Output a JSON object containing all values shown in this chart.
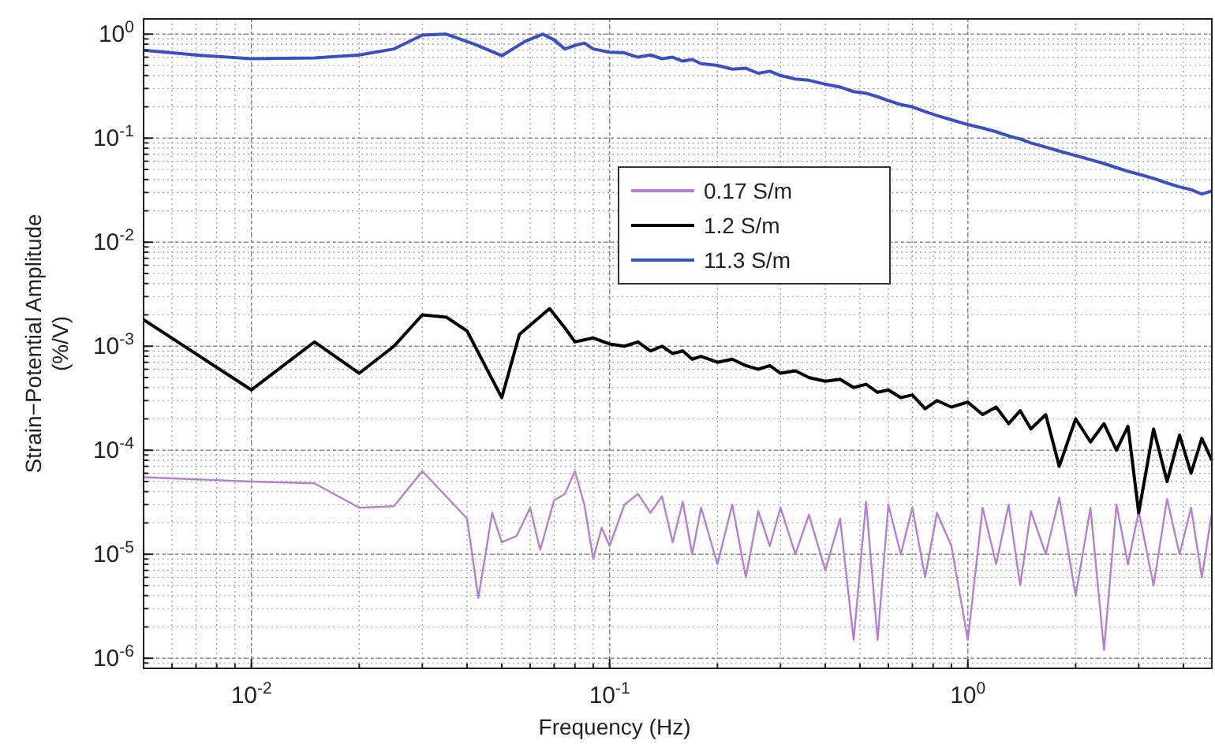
{
  "chart_data": {
    "type": "line",
    "xlabel": "Frequency (Hz)",
    "ylabel": "Strain−Potential Amplitude\n(%/V)",
    "log": "xy",
    "grid": true,
    "legend": "right",
    "xlim": [
      0.005,
      4.8
    ],
    "ylim": [
      8e-07,
      1.4
    ],
    "xticks": [
      {
        "value": 0.01,
        "label": "10$^{-2}$"
      },
      {
        "value": 0.1,
        "label": "10$^{-1}$"
      },
      {
        "value": 1,
        "label": "10$^{0}$"
      }
    ],
    "yticks": [
      {
        "value": 1e-06,
        "label": "10$^{-6}$"
      },
      {
        "value": 1e-05,
        "label": "10$^{-5}$"
      },
      {
        "value": 0.0001,
        "label": "10$^{-4}$"
      },
      {
        "value": 0.001,
        "label": "10$^{-3}$"
      },
      {
        "value": 0.01,
        "label": "10$^{-2}$"
      },
      {
        "value": 0.1,
        "label": "10$^{-1}$"
      },
      {
        "value": 1,
        "label": "10$^{0}$"
      }
    ],
    "series": [
      {
        "name": "0.17 S/m",
        "color": "#b77fcf",
        "x": [
          0.005,
          0.01,
          0.015,
          0.02,
          0.025,
          0.03,
          0.04,
          0.043,
          0.047,
          0.05,
          0.055,
          0.06,
          0.064,
          0.07,
          0.075,
          0.08,
          0.085,
          0.09,
          0.095,
          0.1,
          0.11,
          0.12,
          0.13,
          0.14,
          0.15,
          0.16,
          0.17,
          0.18,
          0.2,
          0.22,
          0.24,
          0.26,
          0.28,
          0.3,
          0.33,
          0.36,
          0.4,
          0.44,
          0.48,
          0.52,
          0.56,
          0.6,
          0.65,
          0.7,
          0.76,
          0.82,
          0.9,
          1.0,
          1.1,
          1.2,
          1.3,
          1.4,
          1.5,
          1.65,
          1.8,
          2.0,
          2.2,
          2.4,
          2.6,
          2.8,
          3.0,
          3.3,
          3.6,
          3.9,
          4.2,
          4.5,
          4.8
        ],
        "values": [
          5.5e-05,
          5e-05,
          4.8e-05,
          2.8e-05,
          2.9e-05,
          6.3e-05,
          2.2e-05,
          3.8e-06,
          2.5e-05,
          1.3e-05,
          1.5e-05,
          2.8e-05,
          1.1e-05,
          3.3e-05,
          3.8e-05,
          6.3e-05,
          3e-05,
          9e-06,
          1.8e-05,
          1.2e-05,
          3e-05,
          3.8e-05,
          2.5e-05,
          3.6e-05,
          1.3e-05,
          3.2e-05,
          1e-05,
          2.8e-05,
          8e-06,
          3e-05,
          6e-06,
          2.6e-05,
          1.2e-05,
          2.8e-05,
          1e-05,
          2.4e-05,
          7e-06,
          2.2e-05,
          1.5e-06,
          3.2e-05,
          1.5e-06,
          3e-05,
          1e-05,
          2.8e-05,
          6e-06,
          2.5e-05,
          1.2e-05,
          1.5e-06,
          2.8e-05,
          8e-06,
          3e-05,
          5e-06,
          2.6e-05,
          1e-05,
          3.5e-05,
          4e-06,
          2.8e-05,
          1.2e-06,
          3e-05,
          8e-06,
          2.6e-05,
          5e-06,
          3.4e-05,
          1e-05,
          2.8e-05,
          6e-06,
          2.5e-05
        ]
      },
      {
        "name": "1.2 S/m",
        "color": "#000000",
        "x": [
          0.005,
          0.01,
          0.015,
          0.02,
          0.025,
          0.03,
          0.035,
          0.04,
          0.05,
          0.056,
          0.068,
          0.075,
          0.08,
          0.09,
          0.1,
          0.11,
          0.12,
          0.13,
          0.14,
          0.15,
          0.16,
          0.17,
          0.18,
          0.2,
          0.22,
          0.24,
          0.26,
          0.28,
          0.3,
          0.33,
          0.36,
          0.4,
          0.44,
          0.48,
          0.52,
          0.56,
          0.6,
          0.65,
          0.7,
          0.76,
          0.82,
          0.9,
          1.0,
          1.1,
          1.2,
          1.3,
          1.4,
          1.5,
          1.65,
          1.8,
          2.0,
          2.2,
          2.4,
          2.6,
          2.8,
          3.0,
          3.3,
          3.6,
          3.9,
          4.2,
          4.5,
          4.8
        ],
        "values": [
          0.0018,
          0.00038,
          0.0011,
          0.00055,
          0.001,
          0.002,
          0.0019,
          0.0014,
          0.00032,
          0.0013,
          0.0023,
          0.0015,
          0.0011,
          0.0012,
          0.00105,
          0.001,
          0.0011,
          0.0009,
          0.001,
          0.00085,
          0.0009,
          0.00075,
          0.0008,
          0.0007,
          0.00075,
          0.00065,
          0.0006,
          0.00065,
          0.00055,
          0.00058,
          0.0005,
          0.00046,
          0.00048,
          0.0004,
          0.00043,
          0.00036,
          0.00038,
          0.00032,
          0.00034,
          0.00025,
          0.0003,
          0.00026,
          0.00029,
          0.00022,
          0.00026,
          0.00018,
          0.00024,
          0.00016,
          0.00022,
          7e-05,
          0.0002,
          0.00012,
          0.00018,
          0.0001,
          0.00017,
          2.5e-05,
          0.00016,
          5e-05,
          0.00014,
          6e-05,
          0.00013,
          8e-05
        ]
      },
      {
        "name": "11.3 S/m",
        "color": "#3a4fc0",
        "x": [
          0.005,
          0.007,
          0.01,
          0.015,
          0.02,
          0.025,
          0.03,
          0.035,
          0.042,
          0.05,
          0.058,
          0.065,
          0.07,
          0.075,
          0.08,
          0.085,
          0.09,
          0.1,
          0.11,
          0.12,
          0.13,
          0.14,
          0.15,
          0.16,
          0.17,
          0.18,
          0.2,
          0.22,
          0.24,
          0.26,
          0.28,
          0.3,
          0.33,
          0.36,
          0.4,
          0.44,
          0.48,
          0.52,
          0.56,
          0.6,
          0.65,
          0.7,
          0.76,
          0.82,
          0.9,
          1.0,
          1.1,
          1.2,
          1.3,
          1.4,
          1.5,
          1.65,
          1.8,
          2.0,
          2.2,
          2.4,
          2.6,
          2.8,
          3.0,
          3.3,
          3.6,
          3.9,
          4.2,
          4.5,
          4.8
        ],
        "values": [
          0.7,
          0.63,
          0.58,
          0.59,
          0.63,
          0.72,
          0.98,
          1.0,
          0.8,
          0.62,
          0.85,
          1.0,
          0.88,
          0.72,
          0.78,
          0.82,
          0.72,
          0.67,
          0.66,
          0.6,
          0.63,
          0.58,
          0.6,
          0.55,
          0.57,
          0.52,
          0.5,
          0.46,
          0.47,
          0.42,
          0.44,
          0.4,
          0.37,
          0.36,
          0.33,
          0.31,
          0.28,
          0.27,
          0.25,
          0.23,
          0.21,
          0.2,
          0.18,
          0.165,
          0.15,
          0.135,
          0.125,
          0.115,
          0.105,
          0.098,
          0.09,
          0.082,
          0.075,
          0.068,
          0.062,
          0.057,
          0.052,
          0.048,
          0.045,
          0.041,
          0.037,
          0.034,
          0.032,
          0.029,
          0.031
        ]
      }
    ]
  }
}
